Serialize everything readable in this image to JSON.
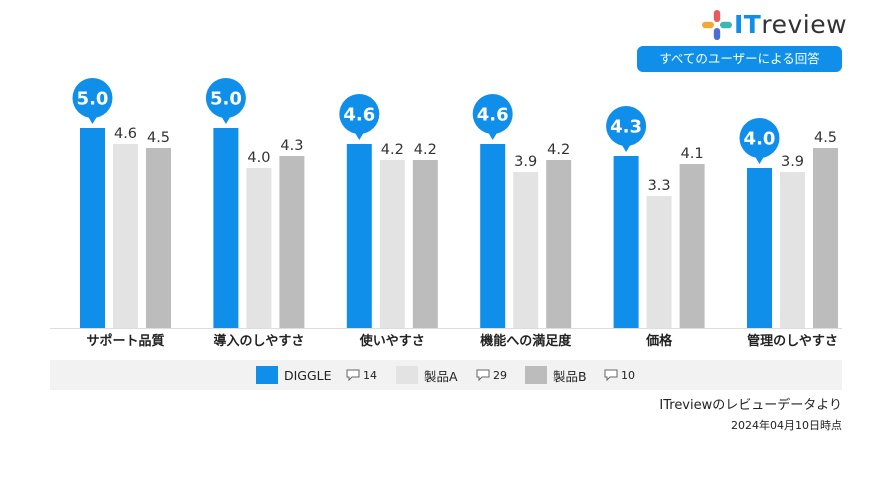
{
  "brand": {
    "logo_name": "ITreview",
    "accent": "#0f8fea"
  },
  "badge": {
    "label": "すべてのユーザーによる回答"
  },
  "chart_data": {
    "type": "bar",
    "categories": [
      "サポート品質",
      "導入のしやすさ",
      "使いやすさ",
      "機能への満足度",
      "価格",
      "管理のしやすさ"
    ],
    "series": [
      {
        "name": "DIGGLE",
        "color": "#0f8fea",
        "values": [
          5.0,
          5.0,
          4.6,
          4.6,
          4.3,
          4.0
        ],
        "review_count": "14"
      },
      {
        "name": "製品A",
        "color": "#e3e3e3",
        "values": [
          4.6,
          4.0,
          4.2,
          3.9,
          3.3,
          3.9
        ],
        "review_count": "29"
      },
      {
        "name": "製品B",
        "color": "#bcbcbc",
        "values": [
          4.5,
          4.3,
          4.2,
          4.2,
          4.1,
          4.5
        ],
        "review_count": "10"
      }
    ],
    "ylim": [
      0,
      5
    ],
    "grid": false,
    "legend_position": "bottom"
  },
  "footer": {
    "source": "ITreviewのレビューデータより",
    "date": "2024年04月10日時点"
  }
}
